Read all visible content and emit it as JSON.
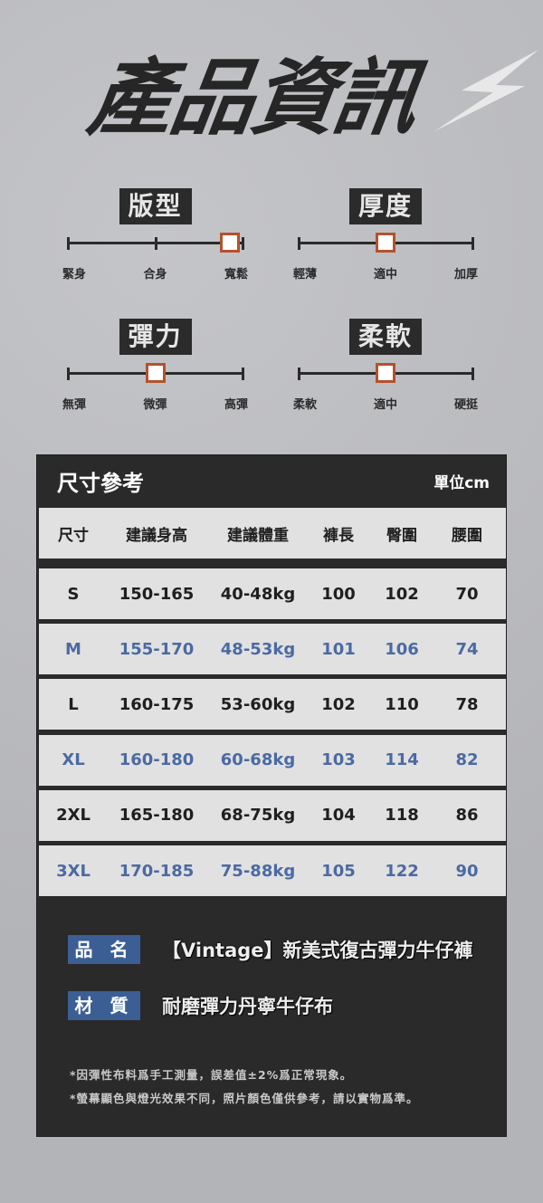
{
  "title": "產品資訊",
  "attributes": [
    {
      "name": "版型",
      "options": [
        "緊身",
        "合身",
        "寬鬆"
      ],
      "selected_index": 2,
      "value_fraction": 1.0
    },
    {
      "name": "厚度",
      "options": [
        "輕薄",
        "適中",
        "加厚"
      ],
      "selected_index": 1,
      "value_fraction": 0.5
    },
    {
      "name": "彈力",
      "options": [
        "無彈",
        "微彈",
        "高彈"
      ],
      "selected_index": 1,
      "value_fraction": 0.5
    },
    {
      "name": "柔軟",
      "options": [
        "柔軟",
        "適中",
        "硬挺"
      ],
      "selected_index": 1,
      "value_fraction": 0.5
    }
  ],
  "size_chart": {
    "title": "尺寸參考",
    "unit": "單位cm",
    "headers": [
      "尺寸",
      "建議身高",
      "建議體重",
      "褲長",
      "臀圍",
      "腰圍"
    ],
    "rows": [
      [
        "S",
        "150-165",
        "40-48kg",
        "100",
        "102",
        "70"
      ],
      [
        "M",
        "155-170",
        "48-53kg",
        "101",
        "106",
        "74"
      ],
      [
        "L",
        "160-175",
        "53-60kg",
        "102",
        "110",
        "78"
      ],
      [
        "XL",
        "160-180",
        "60-68kg",
        "103",
        "114",
        "82"
      ],
      [
        "2XL",
        "165-180",
        "68-75kg",
        "104",
        "118",
        "86"
      ],
      [
        "3XL",
        "170-185",
        "75-88kg",
        "105",
        "122",
        "90"
      ]
    ]
  },
  "product": {
    "name_label": "品 名",
    "name": "【Vintage】新美式復古彈力牛仔褲",
    "material_label": "材 質",
    "material": "耐磨彈力丹寧牛仔布"
  },
  "notes": [
    "*因彈性布料爲手工測量，誤差值±2%爲正常現象。",
    "*螢幕顯色與燈光效果不同，照片顏色僅供參考，請以實物爲準。"
  ],
  "colors": {
    "accent_knob": "#b5512d",
    "tag_blue": "#3b5f95",
    "alt_row_text": "#4b6aa3",
    "dark": "#2a2a2a"
  }
}
